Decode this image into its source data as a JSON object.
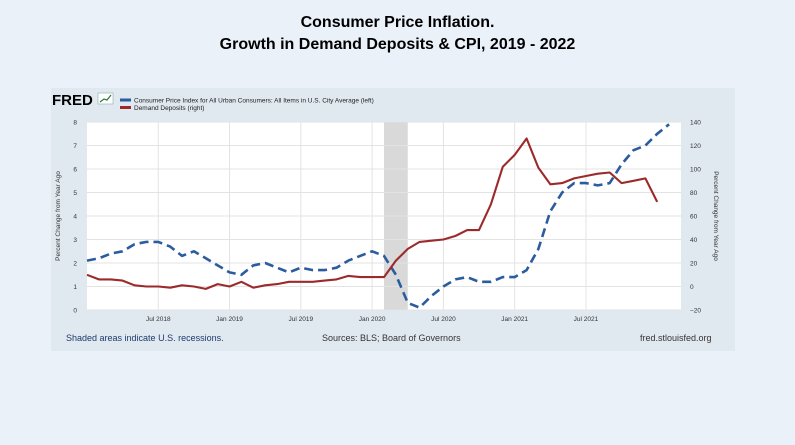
{
  "title_line1": "Consumer Price Inflation.",
  "title_line2": "Growth in Demand Deposits & CPI, 2019 - 2022",
  "logo_text": "FRED",
  "footer": {
    "recession_note": "Shaded areas indicate U.S. recessions.",
    "sources": "Sources: BLS; Board of Governors",
    "site": "fred.stlouisfed.org"
  },
  "colors": {
    "cpi": "#2b5c9e",
    "deposits": "#9c2a2a",
    "recession": "#d9d9d9",
    "plot_bg": "#ffffff",
    "panel_bg": "#e1e9f0"
  },
  "chart_data": {
    "type": "line",
    "title": "Consumer Price Inflation. Growth in Demand Deposits & CPI, 2019 - 2022",
    "ylabel_left": "Percent Change from Year Ago",
    "ylabel_right": "Percent Change from Year Ago",
    "ylim_left": [
      0,
      8
    ],
    "ylim_right": [
      -20,
      140
    ],
    "yticks_left": [
      "0",
      "1",
      "2",
      "3",
      "4",
      "5",
      "6",
      "7",
      "8"
    ],
    "yticks_right": [
      "−20",
      "0",
      "20",
      "40",
      "60",
      "80",
      "100",
      "120",
      "140"
    ],
    "xlim": [
      "2018-01",
      "2022-03"
    ],
    "xticks": [
      {
        "label": "Jul 2018",
        "date": "2018-07"
      },
      {
        "label": "Jan 2019",
        "date": "2019-01"
      },
      {
        "label": "Jul 2019",
        "date": "2019-07"
      },
      {
        "label": "Jan 2020",
        "date": "2020-01"
      },
      {
        "label": "Jul 2020",
        "date": "2020-07"
      },
      {
        "label": "Jan 2021",
        "date": "2021-01"
      },
      {
        "label": "Jul 2021",
        "date": "2021-07"
      }
    ],
    "recession": {
      "start": "2020-02",
      "end": "2020-04"
    },
    "grid": true,
    "legend_position": "top-left",
    "series": [
      {
        "name": "Consumer Price Index for All Urban Consumers: All Items in U.S. City Average (left)",
        "axis": "left",
        "style": "dashed",
        "x": [
          "2018-01",
          "2018-02",
          "2018-03",
          "2018-04",
          "2018-05",
          "2018-06",
          "2018-07",
          "2018-08",
          "2018-09",
          "2018-10",
          "2018-11",
          "2018-12",
          "2019-01",
          "2019-02",
          "2019-03",
          "2019-04",
          "2019-05",
          "2019-06",
          "2019-07",
          "2019-08",
          "2019-09",
          "2019-10",
          "2019-11",
          "2019-12",
          "2020-01",
          "2020-02",
          "2020-03",
          "2020-04",
          "2020-05",
          "2020-06",
          "2020-07",
          "2020-08",
          "2020-09",
          "2020-10",
          "2020-11",
          "2020-12",
          "2021-01",
          "2021-02",
          "2021-03",
          "2021-04",
          "2021-05",
          "2021-06",
          "2021-07",
          "2021-08",
          "2021-09",
          "2021-10",
          "2021-11",
          "2021-12",
          "2022-01",
          "2022-02"
        ],
        "values": [
          2.1,
          2.2,
          2.4,
          2.5,
          2.8,
          2.9,
          2.9,
          2.7,
          2.3,
          2.5,
          2.2,
          1.9,
          1.6,
          1.5,
          1.9,
          2.0,
          1.8,
          1.6,
          1.8,
          1.7,
          1.7,
          1.8,
          2.1,
          2.3,
          2.5,
          2.3,
          1.5,
          0.3,
          0.1,
          0.6,
          1.0,
          1.3,
          1.4,
          1.2,
          1.2,
          1.4,
          1.4,
          1.7,
          2.6,
          4.2,
          5.0,
          5.4,
          5.4,
          5.3,
          5.4,
          6.2,
          6.8,
          7.0,
          7.5,
          7.9
        ]
      },
      {
        "name": "Demand Deposits (right)",
        "axis": "right",
        "style": "solid",
        "x": [
          "2018-01",
          "2018-02",
          "2018-03",
          "2018-04",
          "2018-05",
          "2018-06",
          "2018-07",
          "2018-08",
          "2018-09",
          "2018-10",
          "2018-11",
          "2018-12",
          "2019-01",
          "2019-02",
          "2019-03",
          "2019-04",
          "2019-05",
          "2019-06",
          "2019-07",
          "2019-08",
          "2019-09",
          "2019-10",
          "2019-11",
          "2019-12",
          "2020-01",
          "2020-02",
          "2020-03",
          "2020-04",
          "2020-05",
          "2020-06",
          "2020-07",
          "2020-08",
          "2020-09",
          "2020-10",
          "2020-11",
          "2020-12",
          "2021-01",
          "2021-02",
          "2021-03",
          "2021-04",
          "2021-05",
          "2021-06",
          "2021-07",
          "2021-08",
          "2021-09",
          "2021-10",
          "2021-11",
          "2021-12",
          "2022-01"
        ],
        "values": [
          10,
          6,
          6,
          5,
          1,
          0,
          0,
          -1,
          1,
          0,
          -2,
          2,
          0,
          4,
          -1,
          1,
          2,
          4,
          4,
          4,
          5,
          6,
          9,
          8,
          8,
          8,
          22,
          32,
          38,
          39,
          40,
          43,
          48,
          48,
          70,
          102,
          112,
          126,
          101,
          87,
          88,
          92,
          94,
          96,
          97,
          88,
          90,
          92,
          72
        ]
      }
    ]
  }
}
